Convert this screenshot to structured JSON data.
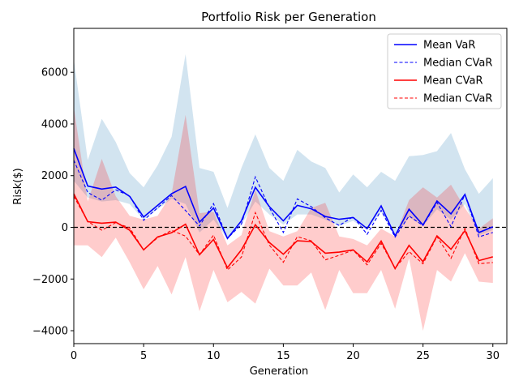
{
  "chart_data": {
    "type": "line",
    "title": "Portfolio Risk per Generation",
    "xlabel": "Generation",
    "ylabel": "Risk($)",
    "xlim": [
      0,
      31
    ],
    "ylim": [
      -4500,
      7700
    ],
    "xticks": [
      0,
      5,
      10,
      15,
      20,
      25,
      30
    ],
    "yticks": [
      -4000,
      -2000,
      0,
      2000,
      4000,
      6000
    ],
    "ytick_labels": [
      "−4000",
      "−2000",
      "0",
      "2000",
      "4000",
      "6000"
    ],
    "reference_line": 0,
    "legend_position": "top-right",
    "x": [
      0,
      1,
      2,
      3,
      4,
      5,
      6,
      7,
      8,
      9,
      10,
      11,
      12,
      13,
      14,
      15,
      16,
      17,
      18,
      19,
      20,
      21,
      22,
      23,
      24,
      25,
      26,
      27,
      28,
      29,
      30
    ],
    "series": [
      {
        "name": "Mean VaR",
        "color": "#0000ff",
        "style": "solid",
        "values": [
          3050,
          1600,
          1480,
          1560,
          1200,
          400,
          850,
          1300,
          1580,
          200,
          750,
          -430,
          250,
          1550,
          800,
          250,
          850,
          720,
          420,
          310,
          380,
          -50,
          830,
          -330,
          700,
          90,
          1020,
          520,
          1270,
          -200,
          20
        ]
      },
      {
        "name": "Median CVaR",
        "color": "#0000ff",
        "style": "dashed",
        "values": [
          2600,
          1350,
          1050,
          1450,
          1220,
          270,
          760,
          1230,
          650,
          50,
          920,
          -430,
          120,
          1950,
          760,
          -200,
          1100,
          800,
          370,
          70,
          410,
          -270,
          660,
          -380,
          440,
          70,
          960,
          30,
          1270,
          -370,
          -200
        ]
      },
      {
        "name": "Mean CVaR",
        "color": "#ff0000",
        "style": "solid",
        "values": [
          1300,
          220,
          160,
          200,
          -110,
          -870,
          -370,
          -210,
          120,
          -1060,
          -470,
          -1560,
          -870,
          100,
          -590,
          -1040,
          -520,
          -550,
          -1000,
          -960,
          -870,
          -1340,
          -530,
          -1600,
          -700,
          -1330,
          -330,
          -850,
          -130,
          -1290,
          -1140
        ]
      },
      {
        "name": "Median CVaR",
        "color": "#ff0000",
        "style": "dashed",
        "values": [
          1200,
          230,
          -110,
          180,
          -20,
          -870,
          -400,
          -120,
          -340,
          -1060,
          -300,
          -1650,
          -1150,
          570,
          -690,
          -1350,
          -360,
          -520,
          -1260,
          -1080,
          -880,
          -1450,
          -620,
          -1580,
          -940,
          -1410,
          -360,
          -1200,
          -40,
          -1410,
          -1360
        ]
      }
    ],
    "bands": [
      {
        "color": "#1f77b4",
        "opacity": 0.2,
        "lower": [
          1800,
          1150,
          1000,
          1050,
          900,
          300,
          700,
          1100,
          900,
          -200,
          300,
          -450,
          100,
          1000,
          500,
          100,
          500,
          500,
          300,
          50,
          250,
          -100,
          600,
          -300,
          400,
          50,
          700,
          300,
          900,
          -300,
          -100
        ],
        "upper": [
          6500,
          2600,
          4200,
          3300,
          2100,
          1550,
          2400,
          3500,
          6700,
          2300,
          2150,
          750,
          2300,
          3600,
          2300,
          1800,
          3000,
          2550,
          2300,
          1350,
          2050,
          1550,
          2150,
          1800,
          2750,
          2800,
          2950,
          3650,
          2250,
          1300,
          1900
        ]
      },
      {
        "color": "#ff0000",
        "opacity": 0.2,
        "lower": [
          -700,
          -700,
          -1150,
          -400,
          -1350,
          -2400,
          -1500,
          -2600,
          -1150,
          -3250,
          -1650,
          -2900,
          -2500,
          -2950,
          -1600,
          -2250,
          -2250,
          -1750,
          -3200,
          -1650,
          -2550,
          -2550,
          -1650,
          -3150,
          -1200,
          -4000,
          -1650,
          -2100,
          -1000,
          -2100,
          -2150
        ],
        "upper": [
          4650,
          1000,
          2650,
          1200,
          450,
          300,
          450,
          1300,
          4350,
          550,
          600,
          -700,
          -300,
          1450,
          -150,
          -350,
          -150,
          750,
          950,
          -350,
          -450,
          -700,
          -50,
          -350,
          1050,
          1550,
          1150,
          1650,
          750,
          -50,
          350
        ]
      }
    ]
  }
}
